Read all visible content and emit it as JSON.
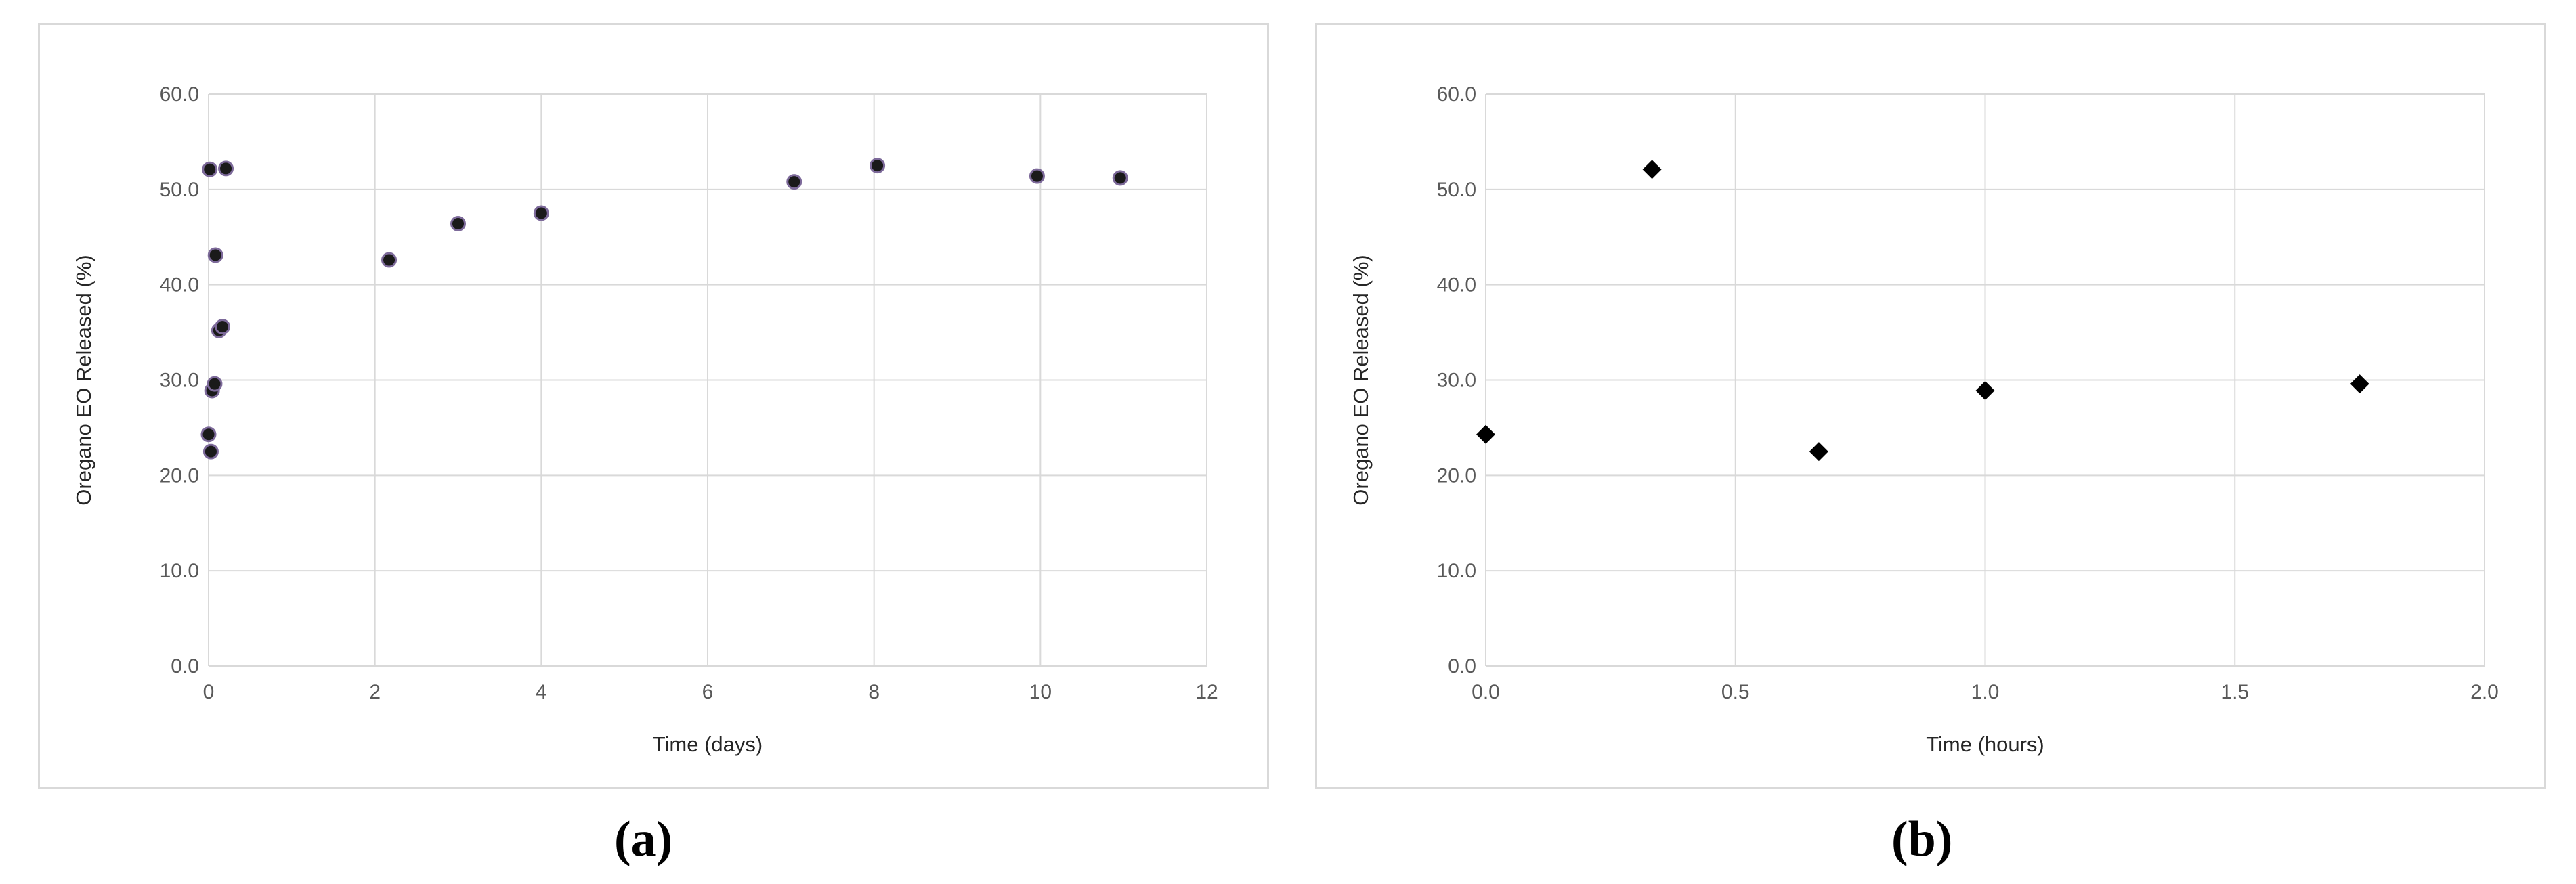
{
  "chart_data": [
    {
      "type": "scatter",
      "panel_label": "(a)",
      "xlabel": "Time (days)",
      "ylabel": "Oregano EO Released (%)",
      "xlim": [
        0,
        12
      ],
      "ylim": [
        0,
        60
      ],
      "xticks": [
        "0",
        "2",
        "4",
        "6",
        "8",
        "10",
        "12"
      ],
      "yticks": [
        "0.0",
        "10.0",
        "20.0",
        "30.0",
        "40.0",
        "50.0",
        "60.0"
      ],
      "grid": true,
      "marker": "circle",
      "marker_color": "#1a1a1a",
      "marker_edge_color": "#7d6a9a",
      "x": [
        0.0,
        0.014,
        0.028,
        0.042,
        0.073,
        0.083,
        0.125,
        0.167,
        0.208,
        2.17,
        3.0,
        4.0,
        7.04,
        8.04,
        9.96,
        10.96
      ],
      "y": [
        24.3,
        52.1,
        22.5,
        28.9,
        29.6,
        43.1,
        35.2,
        35.6,
        52.2,
        42.6,
        46.4,
        47.5,
        50.8,
        52.5,
        51.4,
        51.2
      ]
    },
    {
      "type": "scatter",
      "panel_label": "(b)",
      "xlabel": "Time (hours)",
      "ylabel": "Oregano EO Released (%)",
      "xlim": [
        0,
        2
      ],
      "ylim": [
        0,
        60
      ],
      "xticks": [
        "0.0",
        "0.5",
        "1.0",
        "1.5",
        "2.0"
      ],
      "yticks": [
        "0.0",
        "10.0",
        "20.0",
        "30.0",
        "40.0",
        "50.0",
        "60.0"
      ],
      "grid": true,
      "marker": "diamond",
      "marker_color": "#000000",
      "x": [
        0.0,
        0.333,
        0.667,
        1.0,
        1.75
      ],
      "y": [
        24.3,
        52.1,
        22.5,
        28.9,
        29.6
      ]
    }
  ],
  "colors": {
    "grid": "#d9d9d9",
    "tick_text": "#595959",
    "axis_title": "#262626",
    "panel_border": "#d9d9d9"
  }
}
